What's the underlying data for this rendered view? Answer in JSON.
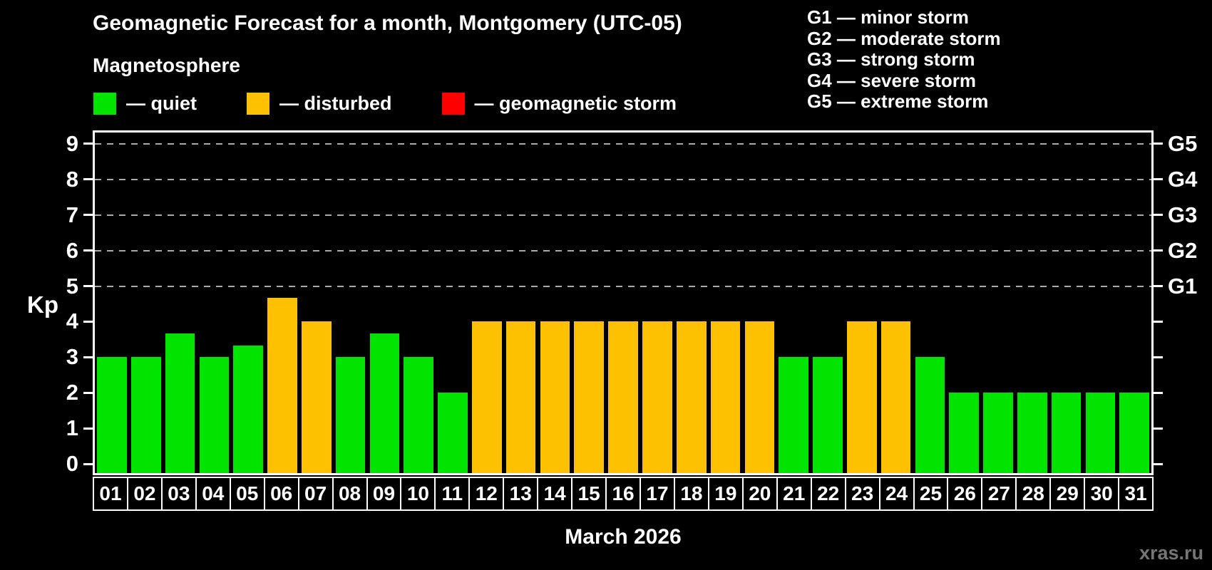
{
  "header": {
    "title": "Geomagnetic Forecast for a month, Montgomery (UTC-05)",
    "subtitle": "Magnetosphere"
  },
  "legend": {
    "items": [
      {
        "id": "quiet",
        "label": "— quiet",
        "color": "#00e400"
      },
      {
        "id": "disturbed",
        "label": "— disturbed",
        "color": "#fdc102"
      },
      {
        "id": "storm",
        "label": "— geomagnetic storm",
        "color": "#ff0000"
      }
    ]
  },
  "storm_scale_legend": {
    "lines": [
      "G1 — minor storm",
      "G2 — moderate storm",
      "G3 — strong storm",
      "G4 — severe storm",
      "G5 — extreme storm"
    ]
  },
  "footer": {
    "xlabel": "March 2026",
    "watermark": "xras.ru"
  },
  "chart_data": {
    "type": "bar",
    "title": "Geomagnetic Forecast for a month, Montgomery (UTC-05)",
    "xlabel": "March 2026",
    "ylabel": "Kp",
    "categories": [
      "01",
      "02",
      "03",
      "04",
      "05",
      "06",
      "07",
      "08",
      "09",
      "10",
      "11",
      "12",
      "13",
      "14",
      "15",
      "16",
      "17",
      "18",
      "19",
      "20",
      "21",
      "22",
      "23",
      "24",
      "25",
      "26",
      "27",
      "28",
      "29",
      "30",
      "31"
    ],
    "values": [
      3,
      3,
      3.67,
      3,
      3.33,
      4.67,
      4,
      3,
      3.67,
      3,
      2,
      4,
      4,
      4,
      4,
      4,
      4,
      4,
      4,
      4,
      3,
      3,
      4,
      4,
      3,
      2,
      2,
      2,
      2,
      2,
      2
    ],
    "states": [
      "quiet",
      "quiet",
      "quiet",
      "quiet",
      "quiet",
      "disturbed",
      "disturbed",
      "quiet",
      "quiet",
      "quiet",
      "quiet",
      "disturbed",
      "disturbed",
      "disturbed",
      "disturbed",
      "disturbed",
      "disturbed",
      "disturbed",
      "disturbed",
      "disturbed",
      "quiet",
      "quiet",
      "disturbed",
      "disturbed",
      "quiet",
      "quiet",
      "quiet",
      "quiet",
      "quiet",
      "quiet",
      "quiet"
    ],
    "ylim": [
      0,
      9
    ],
    "y_display_range": [
      -0.26,
      9.32
    ],
    "yticks": [
      0,
      1,
      2,
      3,
      4,
      5,
      6,
      7,
      8,
      9
    ],
    "grid_levels": [
      5,
      6,
      7,
      8,
      9
    ],
    "right_axis": [
      {
        "kp": 5,
        "label": "G1"
      },
      {
        "kp": 6,
        "label": "G2"
      },
      {
        "kp": 7,
        "label": "G3"
      },
      {
        "kp": 8,
        "label": "G4"
      },
      {
        "kp": 9,
        "label": "G5"
      }
    ],
    "grid": "dashed horizontal lines at G-storm levels",
    "legend_position": "top-left"
  }
}
